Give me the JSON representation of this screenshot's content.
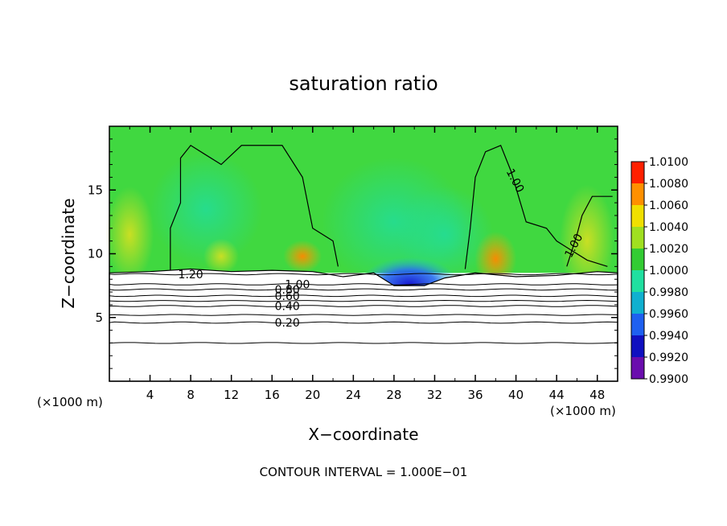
{
  "chart_data": {
    "type": "heatmap",
    "title": "saturation ratio",
    "xlabel": "X−coordinate",
    "ylabel": "Z−coordinate",
    "x_unit_left": "(×1000 m)",
    "x_unit_right": "(×1000 m)",
    "footer": "CONTOUR INTERVAL = 1.000E−01",
    "xlim": [
      0,
      50
    ],
    "ylim": [
      0,
      20
    ],
    "x_ticks": [
      4,
      8,
      12,
      16,
      20,
      24,
      28,
      32,
      36,
      40,
      44,
      48
    ],
    "x_tick_labels": [
      "4",
      "8",
      "12",
      "16",
      "20",
      "24",
      "28",
      "32",
      "36",
      "40",
      "44",
      "48"
    ],
    "y_ticks": [
      5,
      10,
      15
    ],
    "y_tick_labels": [
      "5",
      "10",
      "15"
    ],
    "colorbar": {
      "levels": [
        0.99,
        0.992,
        0.994,
        0.996,
        0.998,
        1.0,
        1.002,
        1.004,
        1.006,
        1.008,
        1.01
      ],
      "labels": [
        "0.9900",
        "0.9920",
        "0.9940",
        "0.9960",
        "0.9980",
        "1.0000",
        "1.0020",
        "1.0040",
        "1.0060",
        "1.0080",
        "1.0100"
      ],
      "colors": [
        "#6a0dad",
        "#1010c0",
        "#1e60f0",
        "#10b0d0",
        "#20e0a0",
        "#33cc33",
        "#a0e020",
        "#f0e000",
        "#ff9000",
        "#ff2000",
        "#f08080"
      ]
    },
    "background_color": "#40d840",
    "contours": [
      {
        "level": 0.2,
        "label": "0.20",
        "z": 4.6,
        "label_x": 17.5
      },
      {
        "level": 0.4,
        "label": "0.40",
        "z": 5.9,
        "label_x": 17.5
      },
      {
        "level": 0.6,
        "label": "0.60",
        "z": 6.7,
        "label_x": 17.5
      },
      {
        "level": 0.8,
        "label": "0.80",
        "z": 7.2,
        "label_x": 17.5
      },
      {
        "level": 1.0,
        "label": "1.00",
        "z": 7.6,
        "label_x": 18.5
      },
      {
        "level": 1.2,
        "label": "1.20",
        "z": 8.4,
        "label_x": 8.0
      }
    ],
    "extra_contours": [
      {
        "z": 3.0
      },
      {
        "z": 5.2
      },
      {
        "z": 6.3
      }
    ],
    "contour_labels_upper": [
      {
        "label": "1.00",
        "x": 39.6,
        "z": 15.6,
        "angle": 62
      },
      {
        "label": "1.00",
        "x": 46.0,
        "z": 10.5,
        "angle": -62
      }
    ]
  }
}
